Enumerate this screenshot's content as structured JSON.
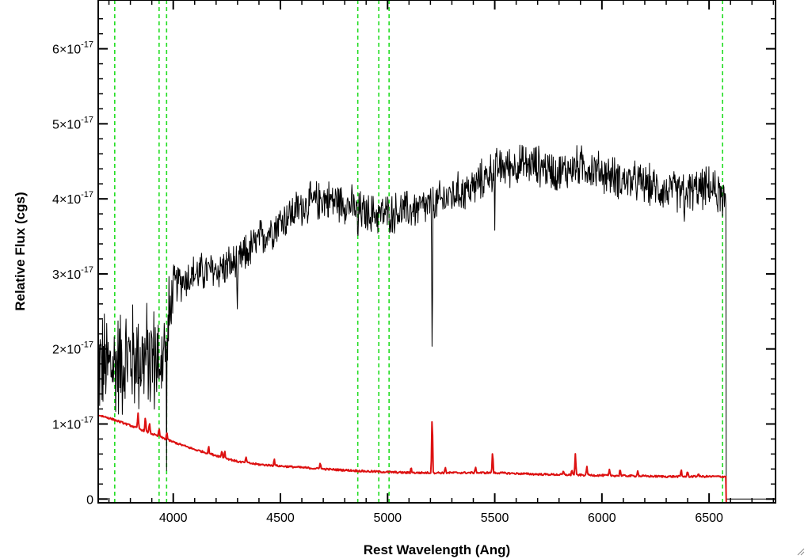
{
  "chart_data": {
    "type": "line",
    "title": "",
    "xlabel": "Rest Wavelength (Ang)",
    "ylabel": "Relative Flux (cgs)",
    "xlim": [
      3650,
      6810
    ],
    "ylim": [
      -5e-19,
      6.65e-17
    ],
    "x_ticks": [
      4000,
      4500,
      5000,
      5500,
      6000,
      6500
    ],
    "y_ticks": [
      {
        "value": 0,
        "mantissa": "0",
        "exponent": ""
      },
      {
        "value": 1e-17,
        "mantissa": "1×10",
        "exponent": "-17"
      },
      {
        "value": 2e-17,
        "mantissa": "2×10",
        "exponent": "-17"
      },
      {
        "value": 3e-17,
        "mantissa": "3×10",
        "exponent": "-17"
      },
      {
        "value": 4e-17,
        "mantissa": "4×10",
        "exponent": "-17"
      },
      {
        "value": 5e-17,
        "mantissa": "5×10",
        "exponent": "-17"
      },
      {
        "value": 6e-17,
        "mantissa": "6×10",
        "exponent": "-17"
      }
    ],
    "grid": false,
    "reference_lines": {
      "color": "#22dd22",
      "style": "dashed",
      "x": [
        3727,
        3934,
        3969,
        4861,
        4959,
        5007,
        6563
      ]
    },
    "series": [
      {
        "color": "#000000",
        "continuum": {
          "x": [
            3650,
            3700,
            3800,
            3900,
            3970,
            4000,
            4100,
            4200,
            4300,
            4400,
            4500,
            4600,
            4700,
            4800,
            4900,
            5000,
            5100,
            5200,
            5300,
            5400,
            5500,
            5600,
            5700,
            5800,
            5900,
            6000,
            6100,
            6200,
            6300,
            6400,
            6500,
            6580
          ],
          "y": [
            1.8e-17,
            1.75e-17,
            1.9e-17,
            1.85e-17,
            2e-17,
            2.85e-17,
            3e-17,
            3.05e-17,
            3.15e-17,
            3.45e-17,
            3.7e-17,
            3.9e-17,
            4e-17,
            3.95e-17,
            3.8e-17,
            3.8e-17,
            3.85e-17,
            3.9e-17,
            4.05e-17,
            4.15e-17,
            4.4e-17,
            4.45e-17,
            4.45e-17,
            4.35e-17,
            4.45e-17,
            4.35e-17,
            4.25e-17,
            4.2e-17,
            4.1e-17,
            4.1e-17,
            4.15e-17,
            4e-17
          ]
        },
        "noise_amplitude": [
          {
            "x": 3650,
            "amp": 9e-18
          },
          {
            "x": 3980,
            "amp": 9e-18
          },
          {
            "x": 4000,
            "amp": 3.2e-18
          },
          {
            "x": 6580,
            "amp": 3.2e-18
          }
        ],
        "absorption_features": [
          {
            "x": 3934,
            "depth": 9e-18
          },
          {
            "x": 3969,
            "depth": 8e-18
          },
          {
            "x": 4300,
            "depth": 8e-18
          },
          {
            "x": 4861,
            "depth": 4.5e-18
          },
          {
            "x": 5208,
            "depth": 2e-17
          },
          {
            "x": 5500,
            "depth": 7e-18
          },
          {
            "x": 6385,
            "depth": 6e-18
          },
          {
            "x": 6563,
            "depth": 3.5e-18
          }
        ],
        "cutoff_x": 6580,
        "cutoff_y": 0
      },
      {
        "color": "#dd1111",
        "continuum": {
          "x": [
            3650,
            3700,
            3800,
            3900,
            4000,
            4100,
            4200,
            4300,
            4400,
            4500,
            4700,
            4900,
            5100,
            5300,
            5500,
            5700,
            5900,
            6100,
            6300,
            6500,
            6580
          ],
          "y": [
            1.12e-17,
            1.08e-17,
            9.8e-18,
            8.7e-18,
            7.6e-18,
            6.6e-18,
            5.8e-18,
            5e-18,
            4.6e-18,
            4.4e-18,
            4e-18,
            3.7e-18,
            3.5e-18,
            3.5e-18,
            3.5e-18,
            3.3e-18,
            3.2e-18,
            3.1e-18,
            3e-18,
            3e-18,
            3e-18
          ]
        },
        "emission_features": [
          {
            "x": 3836,
            "height": 2e-18
          },
          {
            "x": 3870,
            "height": 2e-18
          },
          {
            "x": 3889,
            "height": 1.5e-18
          },
          {
            "x": 3934,
            "height": 1.2e-18
          },
          {
            "x": 3970,
            "height": 1e-18
          },
          {
            "x": 4165,
            "height": 1e-18
          },
          {
            "x": 4227,
            "height": 1e-18
          },
          {
            "x": 4240,
            "height": 1e-18
          },
          {
            "x": 4340,
            "height": 8e-19
          },
          {
            "x": 4471,
            "height": 1e-18
          },
          {
            "x": 4686,
            "height": 1e-18
          },
          {
            "x": 5110,
            "height": 8e-19
          },
          {
            "x": 5208,
            "height": 8.5e-18
          },
          {
            "x": 5270,
            "height": 7e-19
          },
          {
            "x": 5411,
            "height": 8e-19
          },
          {
            "x": 5490,
            "height": 3e-18
          },
          {
            "x": 5820,
            "height": 5e-19
          },
          {
            "x": 5860,
            "height": 8e-19
          },
          {
            "x": 5876,
            "height": 2.8e-18
          },
          {
            "x": 5930,
            "height": 1.2e-18
          },
          {
            "x": 6035,
            "height": 7e-19
          },
          {
            "x": 6085,
            "height": 1e-18
          },
          {
            "x": 6167,
            "height": 8e-19
          },
          {
            "x": 6370,
            "height": 1e-18
          },
          {
            "x": 6400,
            "height": 8e-19
          },
          {
            "x": 6450,
            "height": 5e-19
          }
        ],
        "cutoff_x": 6580,
        "cutoff_y": -5e-19
      }
    ]
  }
}
